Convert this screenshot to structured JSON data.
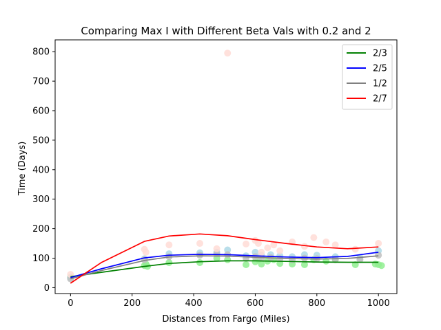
{
  "chart_data": {
    "type": "line",
    "title": "Comparing Max I with Different Beta Vals with 0.2 and 2",
    "xlabel": "Distances from Fargo (Miles)",
    "ylabel": "Time (Days)",
    "xlim": [
      -50,
      1060
    ],
    "ylim": [
      -20,
      840
    ],
    "xticks": [
      0,
      200,
      400,
      600,
      800,
      1000
    ],
    "yticks": [
      0,
      100,
      200,
      300,
      400,
      500,
      600,
      700,
      800
    ],
    "grid": false,
    "legend_position": "top-right",
    "series": [
      {
        "name": "2/3",
        "color": "#008000",
        "point_color": "#90ee90",
        "line": {
          "x": [
            0,
            100,
            240,
            320,
            420,
            510,
            600,
            700,
            800,
            900,
            1000
          ],
          "y": [
            37,
            52,
            72,
            82,
            88,
            91,
            91,
            89,
            87,
            86,
            86
          ]
        },
        "points": {
          "x": [
            0,
            240,
            245,
            250,
            320,
            420,
            475,
            510,
            570,
            600,
            610,
            620,
            640,
            660,
            680,
            720,
            760,
            790,
            830,
            860,
            925,
            990,
            1000,
            1010
          ],
          "y": [
            35,
            75,
            80,
            72,
            85,
            85,
            100,
            95,
            78,
            88,
            95,
            80,
            90,
            95,
            82,
            80,
            78,
            95,
            90,
            95,
            78,
            80,
            78,
            75
          ]
        }
      },
      {
        "name": "2/5",
        "color": "#0000ff",
        "point_color": "#add8e6",
        "line": {
          "x": [
            0,
            100,
            240,
            320,
            420,
            510,
            600,
            700,
            800,
            900,
            1000
          ],
          "y": [
            34,
            64,
            101,
            110,
            113,
            112,
            108,
            104,
            102,
            106,
            120
          ]
        },
        "points": {
          "x": [
            0,
            240,
            320,
            420,
            475,
            510,
            570,
            600,
            620,
            650,
            680,
            720,
            760,
            800,
            860,
            940,
            1000
          ],
          "y": [
            33,
            98,
            115,
            118,
            120,
            128,
            108,
            120,
            110,
            112,
            108,
            105,
            112,
            110,
            105,
            102,
            125
          ]
        }
      },
      {
        "name": "1/2",
        "color": "#808080",
        "point_color": "#c0c0c0",
        "line": {
          "x": [
            0,
            100,
            240,
            320,
            420,
            510,
            600,
            700,
            800,
            900,
            1000
          ],
          "y": [
            30,
            58,
            92,
            104,
            108,
            107,
            103,
            99,
            97,
            99,
            108
          ]
        },
        "points": {
          "x": [
            0,
            240,
            320,
            420,
            475,
            510,
            570,
            600,
            620,
            650,
            680,
            720,
            760,
            800,
            860,
            940,
            1000
          ],
          "y": [
            30,
            95,
            105,
            110,
            115,
            112,
            100,
            105,
            100,
            102,
            98,
            95,
            100,
            98,
            96,
            95,
            110
          ]
        }
      },
      {
        "name": "2/7",
        "color": "#ff0000",
        "point_color": "#ffdcd6",
        "line": {
          "x": [
            0,
            100,
            240,
            320,
            420,
            510,
            600,
            700,
            800,
            900,
            1000
          ],
          "y": [
            15,
            85,
            157,
            175,
            182,
            176,
            163,
            150,
            138,
            132,
            138
          ]
        },
        "points": {
          "x": [
            0,
            240,
            245,
            320,
            420,
            475,
            510,
            570,
            600,
            610,
            620,
            640,
            660,
            680,
            720,
            760,
            790,
            830,
            860,
            925,
            1000
          ],
          "y": [
            45,
            130,
            120,
            145,
            150,
            132,
            795,
            148,
            160,
            150,
            120,
            135,
            145,
            125,
            155,
            140,
            170,
            155,
            145,
            130,
            150
          ]
        }
      }
    ]
  }
}
